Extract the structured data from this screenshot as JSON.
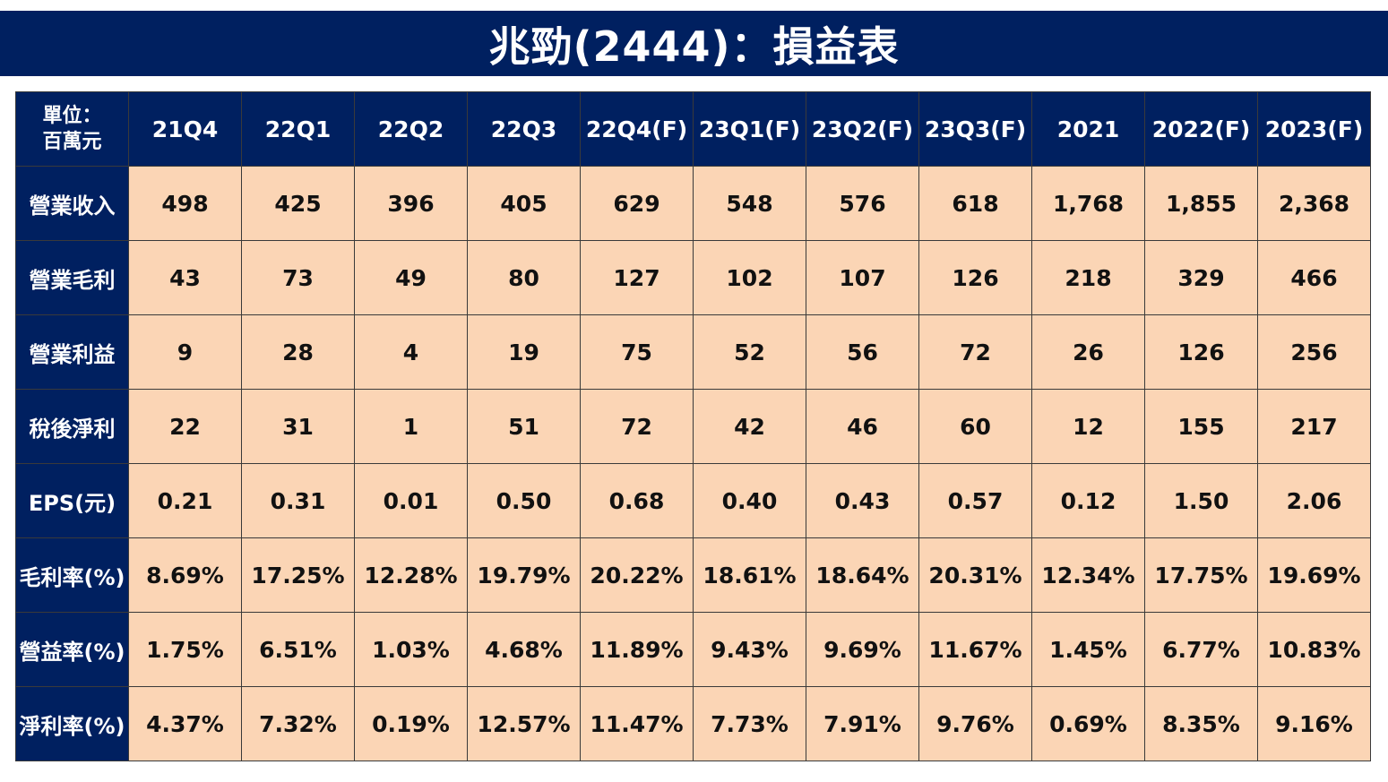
{
  "title": "兆勁(2444)：損益表",
  "unit_label_line1": "單位：",
  "unit_label_line2": "百萬元",
  "columns": [
    "21Q4",
    "22Q1",
    "22Q2",
    "22Q3",
    "22Q4(F)",
    "23Q1(F)",
    "23Q2(F)",
    "23Q3(F)",
    "2021",
    "2022(F)",
    "2023(F)"
  ],
  "rows": [
    {
      "label": "營業收入",
      "values": [
        "498",
        "425",
        "396",
        "405",
        "629",
        "548",
        "576",
        "618",
        "1,768",
        "1,855",
        "2,368"
      ]
    },
    {
      "label": "營業毛利",
      "values": [
        "43",
        "73",
        "49",
        "80",
        "127",
        "102",
        "107",
        "126",
        "218",
        "329",
        "466"
      ]
    },
    {
      "label": "營業利益",
      "values": [
        "9",
        "28",
        "4",
        "19",
        "75",
        "52",
        "56",
        "72",
        "26",
        "126",
        "256"
      ]
    },
    {
      "label": "稅後淨利",
      "values": [
        "22",
        "31",
        "1",
        "51",
        "72",
        "42",
        "46",
        "60",
        "12",
        "155",
        "217"
      ]
    },
    {
      "label": "EPS(元)",
      "values": [
        "0.21",
        "0.31",
        "0.01",
        "0.50",
        "0.68",
        "0.40",
        "0.43",
        "0.57",
        "0.12",
        "1.50",
        "2.06"
      ]
    },
    {
      "label": "毛利率(%)",
      "values": [
        "8.69%",
        "17.25%",
        "12.28%",
        "19.79%",
        "20.22%",
        "18.61%",
        "18.64%",
        "20.31%",
        "12.34%",
        "17.75%",
        "19.69%"
      ]
    },
    {
      "label": "營益率(%)",
      "values": [
        "1.75%",
        "6.51%",
        "1.03%",
        "4.68%",
        "11.89%",
        "9.43%",
        "9.69%",
        "11.67%",
        "1.45%",
        "6.77%",
        "10.83%"
      ]
    },
    {
      "label": "淨利率(%)",
      "values": [
        "4.37%",
        "7.32%",
        "0.19%",
        "12.57%",
        "11.47%",
        "7.73%",
        "7.91%",
        "9.76%",
        "0.69%",
        "8.35%",
        "9.16%"
      ]
    }
  ],
  "colors": {
    "header_bg": "#002060",
    "header_text": "#ffffff",
    "cell_bg": "#fbd5b5",
    "cell_text": "#111111"
  }
}
